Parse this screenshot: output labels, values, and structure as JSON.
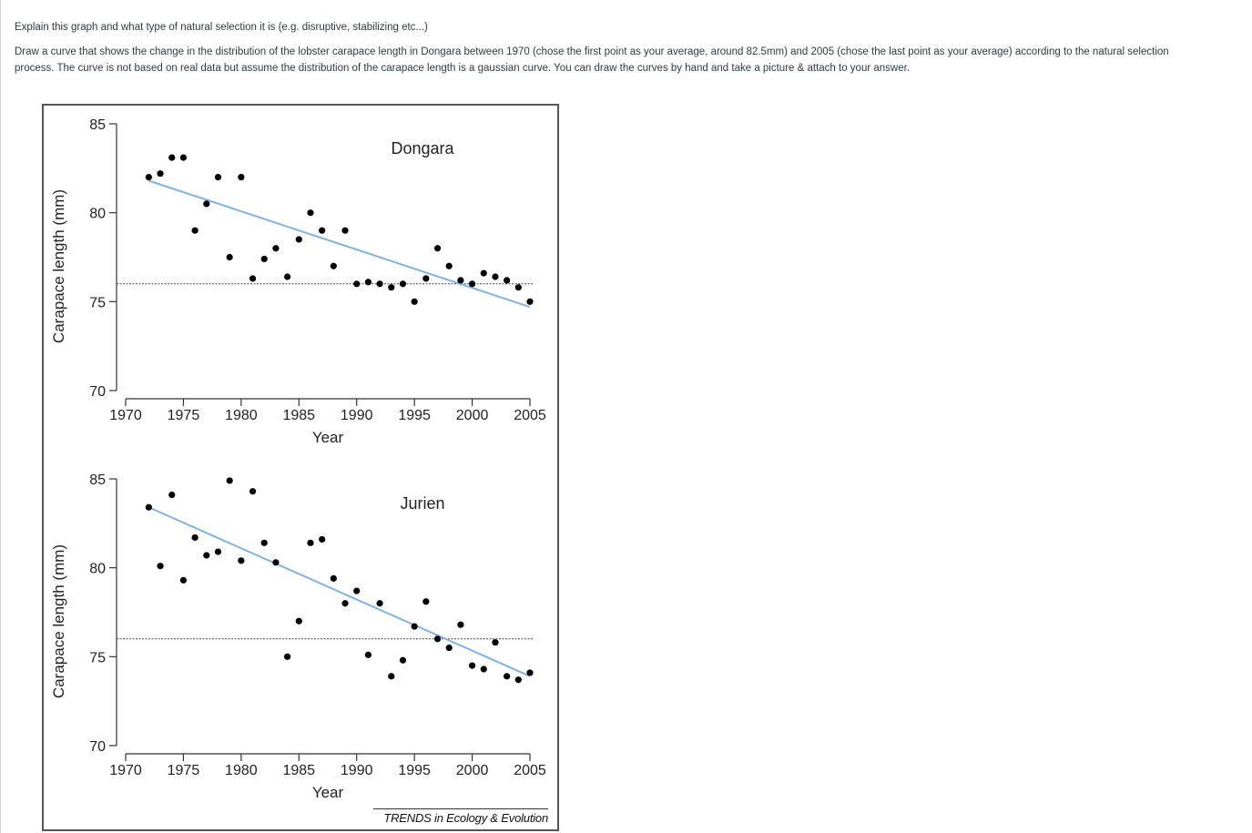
{
  "question": {
    "line1": "Explain this graph and what type of natural selection it is (e.g. disruptive, stabilizing etc...)",
    "line2": "Draw a curve that shows the change in the distribution of the lobster carapace length in Dongara between 1970 (chose the first point as your average, around 82.5mm) and 2005 (chose the last point as your average) according to the natural selection",
    "line3": "process. The curve is not based on real data  but assume the distribution of the carapace length is a gaussian curve. You can draw the curves by hand and take a picture & attach to your answer."
  },
  "figure": {
    "source": "TRENDS in Ecology & Evolution"
  },
  "chart_data": [
    {
      "type": "scatter",
      "title": "Dongara",
      "xlabel": "Year",
      "ylabel": "Carapace length (mm)",
      "xlim": [
        1970,
        2005
      ],
      "ylim": [
        70,
        85
      ],
      "xticks": [
        1970,
        1975,
        1980,
        1985,
        1990,
        1995,
        2000,
        2005
      ],
      "yticks": [
        70,
        75,
        80,
        85
      ],
      "reference_line_y": 76,
      "trend": {
        "x": [
          1972,
          2005
        ],
        "y": [
          81.8,
          74.7
        ],
        "color": "#7fb2e5"
      },
      "points": [
        [
          1972,
          82.0
        ],
        [
          1973,
          82.2
        ],
        [
          1974,
          83.1
        ],
        [
          1975,
          83.1
        ],
        [
          1976,
          79.0
        ],
        [
          1977,
          80.5
        ],
        [
          1978,
          82.0
        ],
        [
          1979,
          77.5
        ],
        [
          1980,
          82.0
        ],
        [
          1981,
          76.3
        ],
        [
          1982,
          77.4
        ],
        [
          1983,
          78.0
        ],
        [
          1984,
          76.4
        ],
        [
          1985,
          78.5
        ],
        [
          1986,
          80.0
        ],
        [
          1987,
          79.0
        ],
        [
          1988,
          77.0
        ],
        [
          1989,
          79.0
        ],
        [
          1990,
          76.0
        ],
        [
          1991,
          76.1
        ],
        [
          1992,
          76.0
        ],
        [
          1993,
          75.8
        ],
        [
          1994,
          76.0
        ],
        [
          1995,
          75.0
        ],
        [
          1996,
          76.3
        ],
        [
          1997,
          78.0
        ],
        [
          1998,
          77.0
        ],
        [
          1999,
          76.2
        ],
        [
          2000,
          76.0
        ],
        [
          2001,
          76.6
        ],
        [
          2002,
          76.4
        ],
        [
          2003,
          76.2
        ],
        [
          2004,
          75.8
        ],
        [
          2005,
          75.0
        ]
      ]
    },
    {
      "type": "scatter",
      "title": "Jurien",
      "xlabel": "Year",
      "ylabel": "Carapace length (mm)",
      "xlim": [
        1970,
        2005
      ],
      "ylim": [
        70,
        85
      ],
      "xticks": [
        1970,
        1975,
        1980,
        1985,
        1990,
        1995,
        2000,
        2005
      ],
      "yticks": [
        70,
        75,
        80,
        85
      ],
      "reference_line_y": 76,
      "trend": {
        "x": [
          1972,
          2005
        ],
        "y": [
          83.4,
          73.9
        ],
        "color": "#7fb2e5"
      },
      "points": [
        [
          1972,
          83.4
        ],
        [
          1973,
          80.1
        ],
        [
          1974,
          84.1
        ],
        [
          1975,
          79.3
        ],
        [
          1976,
          81.7
        ],
        [
          1977,
          80.7
        ],
        [
          1978,
          80.9
        ],
        [
          1979,
          84.9
        ],
        [
          1980,
          80.4
        ],
        [
          1981,
          84.3
        ],
        [
          1982,
          81.4
        ],
        [
          1983,
          80.3
        ],
        [
          1984,
          75.0
        ],
        [
          1985,
          77.0
        ],
        [
          1986,
          81.4
        ],
        [
          1987,
          81.6
        ],
        [
          1988,
          79.4
        ],
        [
          1989,
          78.0
        ],
        [
          1990,
          78.7
        ],
        [
          1991,
          75.1
        ],
        [
          1992,
          78.0
        ],
        [
          1993,
          73.9
        ],
        [
          1994,
          74.8
        ],
        [
          1995,
          76.7
        ],
        [
          1996,
          78.1
        ],
        [
          1997,
          76.0
        ],
        [
          1998,
          75.5
        ],
        [
          1999,
          76.8
        ],
        [
          2000,
          74.5
        ],
        [
          2001,
          74.3
        ],
        [
          2002,
          75.8
        ],
        [
          2003,
          73.9
        ],
        [
          2004,
          73.7
        ],
        [
          2005,
          74.1
        ]
      ]
    }
  ]
}
